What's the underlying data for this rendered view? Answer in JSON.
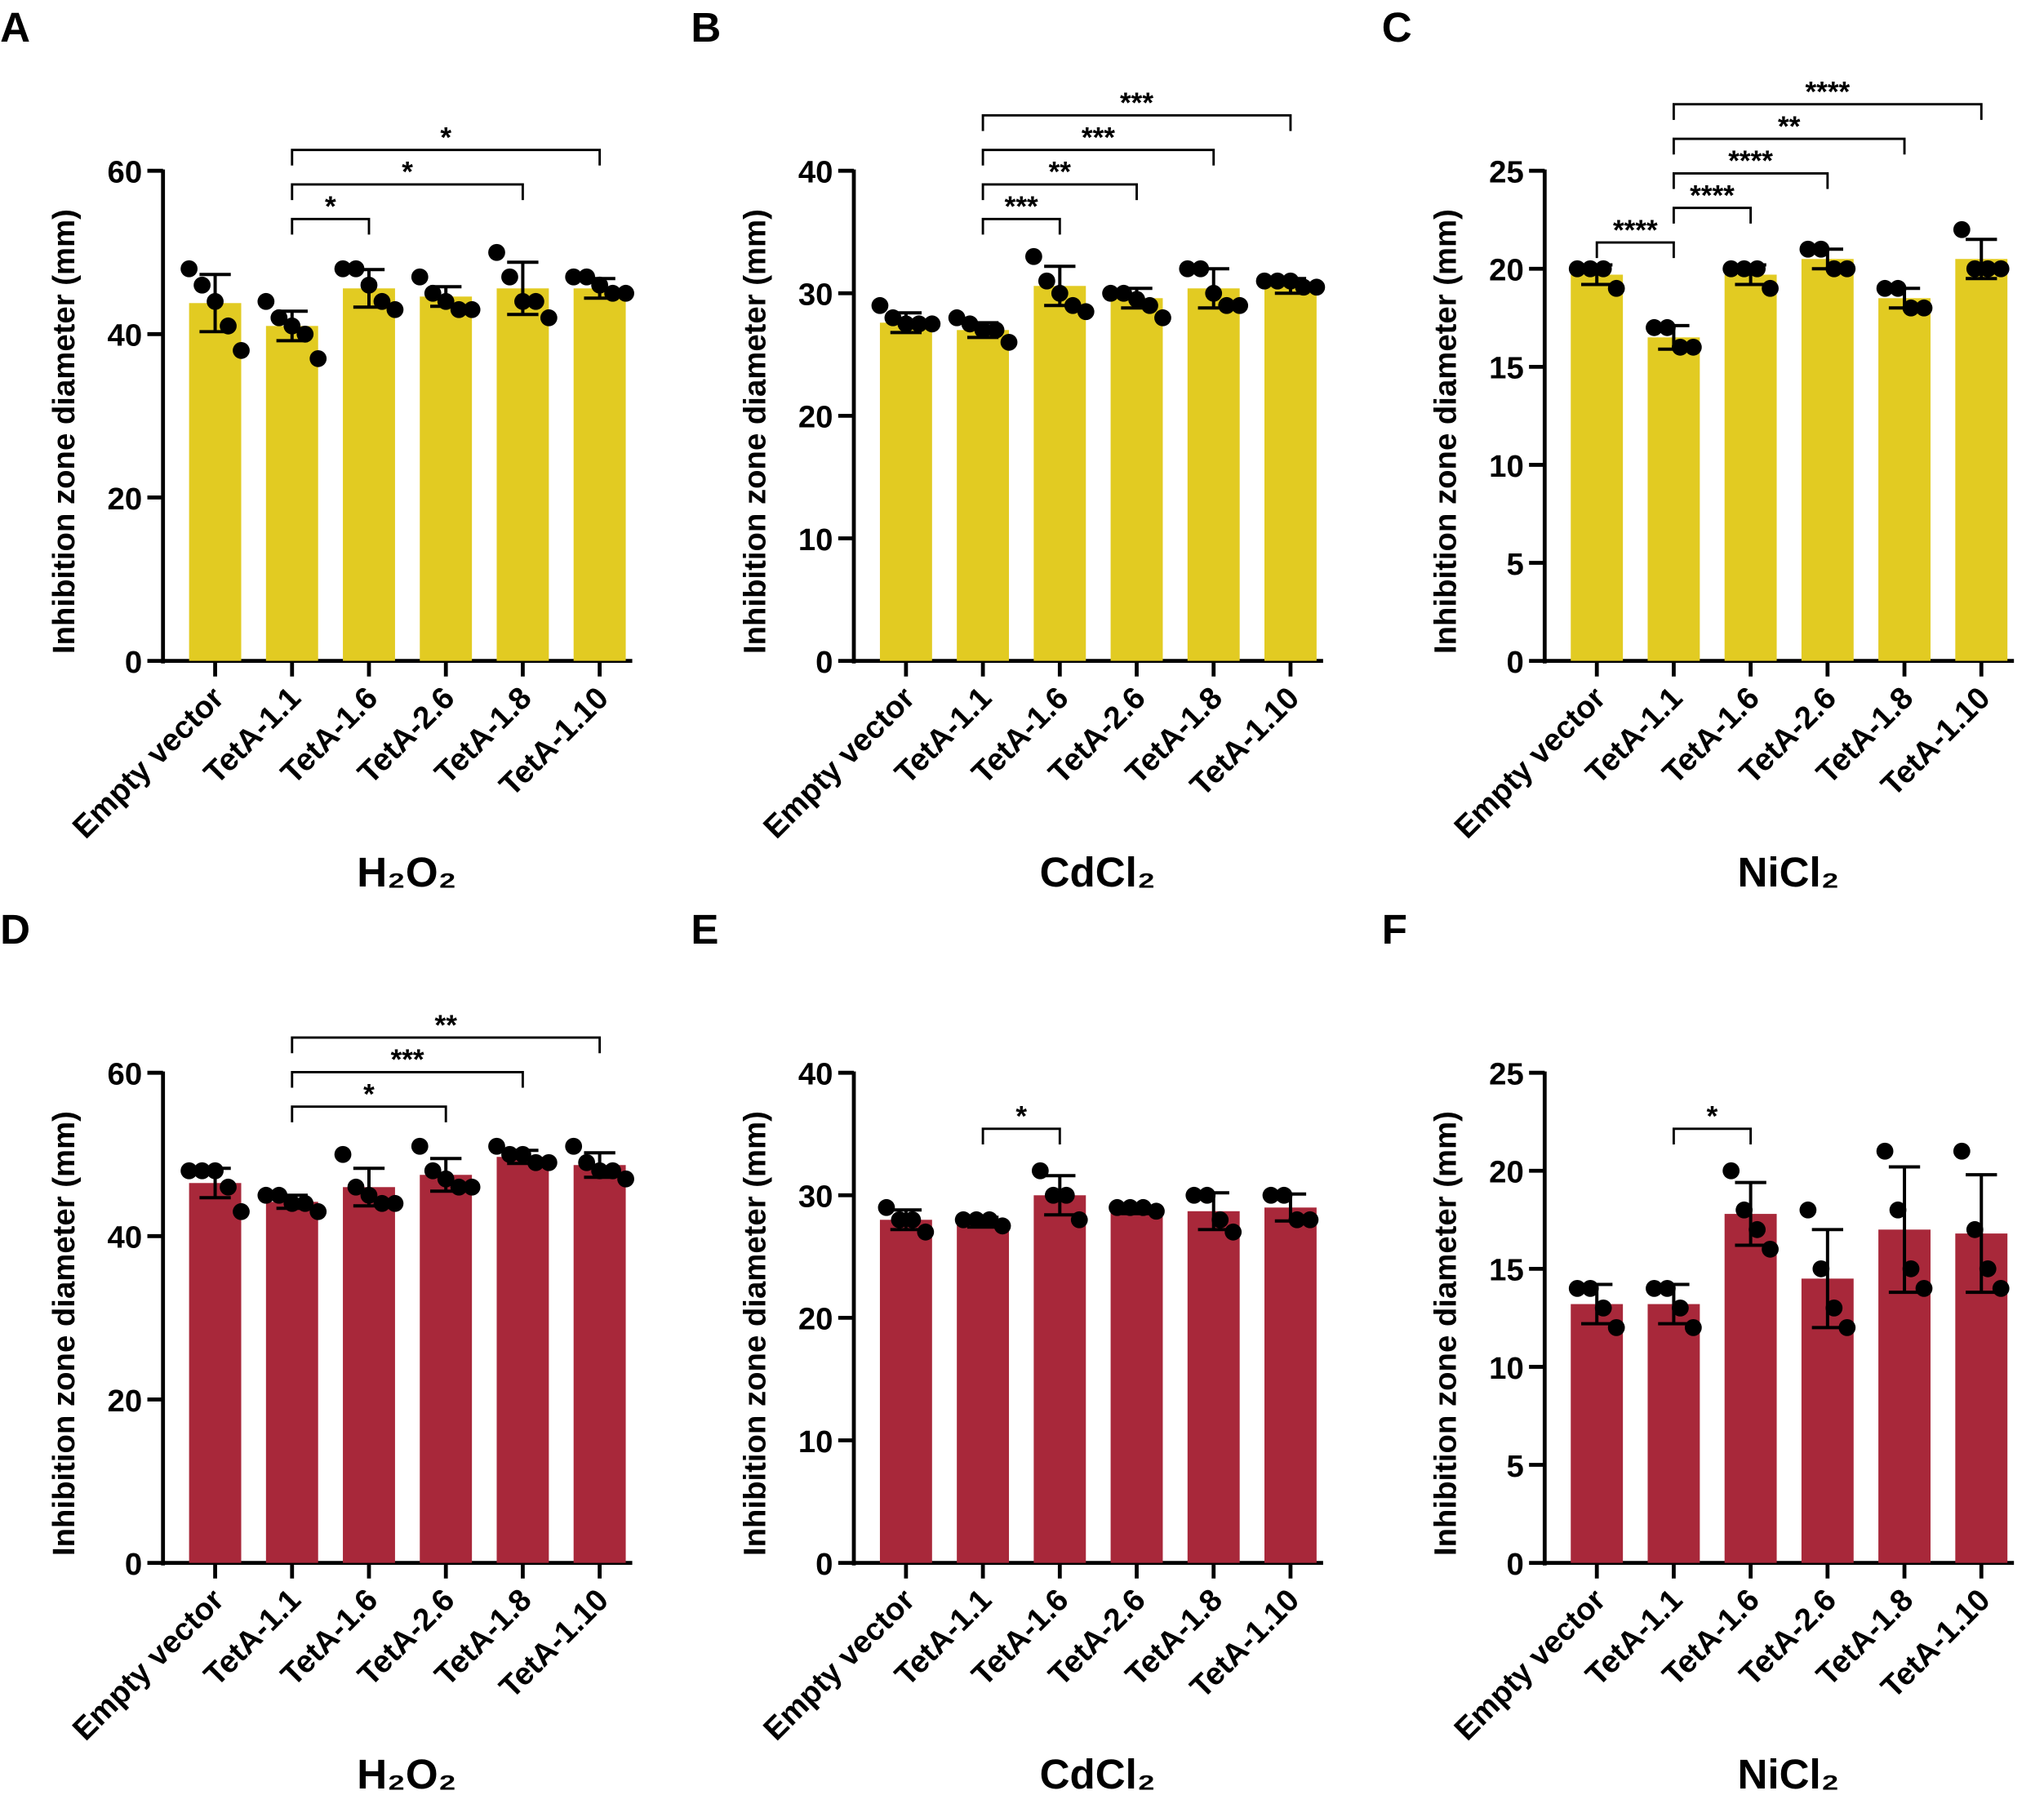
{
  "chart_data": [
    {
      "panel": "A",
      "type": "bar",
      "title": "",
      "xlabel": "H₂O₂",
      "ylabel": "Inhibition zone diameter (mm)",
      "ylim": [
        0,
        60
      ],
      "yticks": [
        0,
        20,
        40,
        60
      ],
      "color": "#E2CB22",
      "categories": [
        "Empty vector",
        "TetA-1.1",
        "TetA-1.6",
        "TetA-2.6",
        "TetA-1.8",
        "TetA-1.10"
      ],
      "values": [
        43.8,
        41.0,
        45.6,
        44.6,
        45.6,
        45.6
      ],
      "errors": [
        3.5,
        1.8,
        2.3,
        1.2,
        3.2,
        1.2
      ],
      "points": [
        [
          48,
          46,
          44,
          41,
          38
        ],
        [
          44,
          42,
          41,
          40,
          37
        ],
        [
          48,
          48,
          46,
          44,
          43
        ],
        [
          47,
          45,
          44,
          43,
          43
        ],
        [
          50,
          47,
          44,
          44,
          42
        ],
        [
          47,
          47,
          46,
          45,
          45
        ]
      ],
      "significance": [
        [
          1,
          2,
          "*"
        ],
        [
          1,
          4,
          "*"
        ],
        [
          1,
          5,
          "*"
        ]
      ]
    },
    {
      "panel": "B",
      "type": "bar",
      "title": "",
      "xlabel": "CdCl₂",
      "ylabel": "Inhibition zone diameter (mm)",
      "ylim": [
        0,
        40
      ],
      "yticks": [
        0,
        10,
        20,
        30,
        40
      ],
      "color": "#E2CB22",
      "categories": [
        "Empty vector",
        "TetA-1.1",
        "TetA-1.6",
        "TetA-2.6",
        "TetA-1.8",
        "TetA-1.10"
      ],
      "values": [
        27.6,
        27.0,
        30.6,
        29.6,
        30.4,
        30.6
      ],
      "errors": [
        0.8,
        0.6,
        1.6,
        0.8,
        1.6,
        0.6
      ],
      "points": [
        [
          29,
          28,
          27.5,
          27.5,
          27.5
        ],
        [
          28,
          27.5,
          27,
          27,
          26
        ],
        [
          33,
          31,
          30,
          29,
          28.5
        ],
        [
          30,
          30,
          29.5,
          29,
          28
        ],
        [
          32,
          32,
          30,
          29,
          29
        ],
        [
          31,
          31,
          31,
          30.5,
          30.5
        ]
      ],
      "significance": [
        [
          1,
          2,
          "***"
        ],
        [
          1,
          3,
          "**"
        ],
        [
          1,
          4,
          "***"
        ],
        [
          1,
          5,
          "***"
        ]
      ]
    },
    {
      "panel": "C",
      "type": "bar",
      "title": "",
      "xlabel": "NiCl₂",
      "ylabel": "Inhibition zone diameter (mm)",
      "ylim": [
        0,
        25
      ],
      "yticks": [
        0,
        5,
        10,
        15,
        20,
        25
      ],
      "color": "#E2CB22",
      "categories": [
        "Empty vector",
        "TetA-1.1",
        "TetA-1.6",
        "TetA-2.6",
        "TetA-1.8",
        "TetA-1.10"
      ],
      "values": [
        19.7,
        16.5,
        19.7,
        20.5,
        18.5,
        20.5
      ],
      "errors": [
        0.5,
        0.6,
        0.5,
        0.5,
        0.5,
        1.0
      ],
      "points": [
        [
          20,
          20,
          20,
          19
        ],
        [
          17,
          17,
          16,
          16
        ],
        [
          20,
          20,
          20,
          19
        ],
        [
          21,
          21,
          20,
          20
        ],
        [
          19,
          19,
          18,
          18
        ],
        [
          22,
          20,
          20,
          20
        ]
      ],
      "significance": [
        [
          0,
          1,
          "****"
        ],
        [
          1,
          2,
          "****"
        ],
        [
          1,
          3,
          "****"
        ],
        [
          1,
          4,
          "**"
        ],
        [
          1,
          5,
          "****"
        ]
      ]
    },
    {
      "panel": "D",
      "type": "bar",
      "title": "",
      "xlabel": "H₂O₂",
      "ylabel": "Inhibition zone diameter (mm)",
      "ylim": [
        0,
        60
      ],
      "yticks": [
        0,
        20,
        40,
        60
      ],
      "color": "#A8283A",
      "categories": [
        "Empty vector",
        "TetA-1.1",
        "TetA-1.6",
        "TetA-2.6",
        "TetA-1.8",
        "TetA-1.10"
      ],
      "values": [
        46.5,
        44.2,
        46.0,
        47.5,
        49.7,
        48.7
      ],
      "errors": [
        1.8,
        0.8,
        2.3,
        2.0,
        0.8,
        1.5
      ],
      "points": [
        [
          48,
          48,
          48,
          46,
          43
        ],
        [
          45,
          45,
          44,
          44,
          43
        ],
        [
          50,
          46,
          45,
          44,
          44
        ],
        [
          51,
          48,
          47,
          46,
          46
        ],
        [
          51,
          50,
          50,
          49,
          49
        ],
        [
          51,
          49,
          48,
          48,
          47
        ]
      ],
      "significance": [
        [
          1,
          3,
          "*"
        ],
        [
          1,
          4,
          "***"
        ],
        [
          1,
          5,
          "**"
        ]
      ]
    },
    {
      "panel": "E",
      "type": "bar",
      "title": "",
      "xlabel": "CdCl₂",
      "ylabel": "Inhibition zone diameter (mm)",
      "ylim": [
        0,
        40
      ],
      "yticks": [
        0,
        10,
        20,
        30,
        40
      ],
      "color": "#A8283A",
      "categories": [
        "Empty vector",
        "TetA-1.1",
        "TetA-1.6",
        "TetA-2.6",
        "TetA-1.8",
        "TetA-1.10"
      ],
      "values": [
        28.0,
        27.8,
        30.0,
        28.8,
        28.7,
        29.0
      ],
      "errors": [
        0.8,
        0.4,
        1.6,
        0.3,
        1.5,
        1.1
      ],
      "points": [
        [
          29,
          28,
          28,
          27
        ],
        [
          28,
          28,
          28,
          27.5
        ],
        [
          32,
          30,
          30,
          28
        ],
        [
          29,
          29,
          29,
          28.7
        ],
        [
          30,
          30,
          28,
          27
        ],
        [
          30,
          30,
          28,
          28
        ]
      ],
      "significance": [
        [
          1,
          2,
          "*"
        ]
      ]
    },
    {
      "panel": "F",
      "type": "bar",
      "title": "",
      "xlabel": "NiCl₂",
      "ylabel": "Inhibition zone diameter (mm)",
      "ylim": [
        0,
        25
      ],
      "yticks": [
        0,
        5,
        10,
        15,
        20,
        25
      ],
      "color": "#A8283A",
      "categories": [
        "Empty vector",
        "TetA-1.1",
        "TetA-1.6",
        "TetA-2.6",
        "TetA-1.8",
        "TetA-1.10"
      ],
      "values": [
        13.2,
        13.2,
        17.8,
        14.5,
        17.0,
        16.8
      ],
      "errors": [
        1.0,
        1.0,
        1.6,
        2.5,
        3.2,
        3.0
      ],
      "points": [
        [
          14,
          14,
          13,
          12
        ],
        [
          14,
          14,
          13,
          12
        ],
        [
          20,
          18,
          17,
          16
        ],
        [
          18,
          15,
          13,
          12
        ],
        [
          21,
          18,
          15,
          14
        ],
        [
          21,
          17,
          15,
          14
        ]
      ],
      "significance": [
        [
          1,
          2,
          "*"
        ]
      ]
    }
  ]
}
